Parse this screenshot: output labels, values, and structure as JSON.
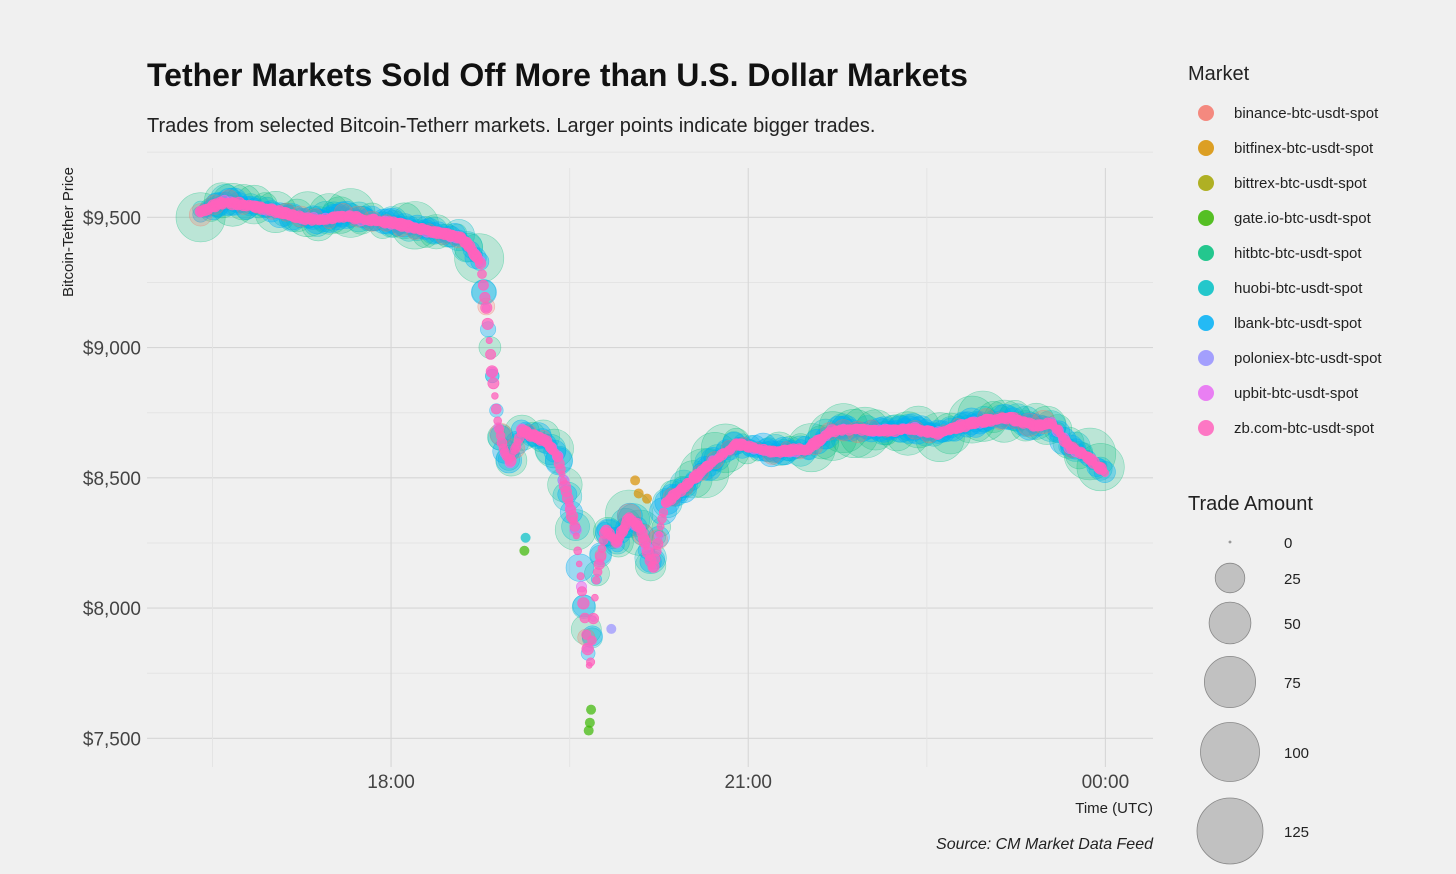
{
  "chart_data": {
    "type": "scatter",
    "title": "Tether Markets Sold Off More than U.S. Dollar Markets",
    "subtitle": "Trades from selected Bitcoin-Tetherr markets. Larger points indicate bigger trades.",
    "xlabel": "Time (UTC)",
    "ylabel": "Bitcoin-Tether Price",
    "caption": "Source: CM Market Data Feed",
    "x_ticks": [
      {
        "label": "18:00",
        "hours": 18
      },
      {
        "label": "21:00",
        "hours": 21
      },
      {
        "label": "00:00",
        "hours": 24
      }
    ],
    "y_ticks": [
      {
        "label": "$7,500",
        "value": 7500
      },
      {
        "label": "$8,000",
        "value": 8000
      },
      {
        "label": "$8,500",
        "value": 8500
      },
      {
        "label": "$9,000",
        "value": 9000
      },
      {
        "label": "$9,500",
        "value": 9500
      }
    ],
    "xlim_hours": [
      15.95,
      24.4
    ],
    "ylim": [
      7390,
      9720
    ],
    "grid": true,
    "legend_position": "right",
    "price_path": [
      [
        16.4,
        9520
      ],
      [
        16.6,
        9560
      ],
      [
        16.8,
        9545
      ],
      [
        17.0,
        9530
      ],
      [
        17.2,
        9500
      ],
      [
        17.4,
        9490
      ],
      [
        17.6,
        9505
      ],
      [
        17.8,
        9490
      ],
      [
        18.0,
        9480
      ],
      [
        18.2,
        9460
      ],
      [
        18.4,
        9440
      ],
      [
        18.6,
        9420
      ],
      [
        18.75,
        9330
      ],
      [
        18.8,
        9150
      ],
      [
        18.85,
        8900
      ],
      [
        18.9,
        8700
      ],
      [
        18.95,
        8600
      ],
      [
        19.0,
        8560
      ],
      [
        19.1,
        8680
      ],
      [
        19.2,
        8660
      ],
      [
        19.3,
        8640
      ],
      [
        19.4,
        8580
      ],
      [
        19.55,
        8300
      ],
      [
        19.62,
        8000
      ],
      [
        19.67,
        7750
      ],
      [
        19.72,
        8100
      ],
      [
        19.8,
        8300
      ],
      [
        19.9,
        8250
      ],
      [
        20.0,
        8350
      ],
      [
        20.1,
        8300
      ],
      [
        20.2,
        8150
      ],
      [
        20.3,
        8400
      ],
      [
        20.5,
        8480
      ],
      [
        20.7,
        8560
      ],
      [
        20.9,
        8630
      ],
      [
        21.2,
        8600
      ],
      [
        21.5,
        8610
      ],
      [
        21.7,
        8680
      ],
      [
        21.9,
        8690
      ],
      [
        22.1,
        8680
      ],
      [
        22.4,
        8690
      ],
      [
        22.6,
        8670
      ],
      [
        22.8,
        8700
      ],
      [
        23.0,
        8720
      ],
      [
        23.2,
        8730
      ],
      [
        23.4,
        8700
      ],
      [
        23.55,
        8710
      ],
      [
        23.7,
        8620
      ],
      [
        23.85,
        8580
      ],
      [
        24.0,
        8520
      ]
    ],
    "spikes": [
      {
        "x": 19.12,
        "y": 8220,
        "series": "gate.io-btc-usdt-spot"
      },
      {
        "x": 19.13,
        "y": 8270,
        "series": "huobi-btc-usdt-spot"
      },
      {
        "x": 19.66,
        "y": 7530,
        "series": "gate.io-btc-usdt-spot"
      },
      {
        "x": 19.67,
        "y": 7560,
        "series": "gate.io-btc-usdt-spot"
      },
      {
        "x": 19.68,
        "y": 7610,
        "series": "gate.io-btc-usdt-spot"
      },
      {
        "x": 20.05,
        "y": 8490,
        "series": "bitfinex-btc-usdt-spot"
      },
      {
        "x": 20.08,
        "y": 8440,
        "series": "bitfinex-btc-usdt-spot"
      },
      {
        "x": 20.15,
        "y": 8420,
        "series": "bitfinex-btc-usdt-spot"
      },
      {
        "x": 19.85,
        "y": 7920,
        "series": "poloniex-btc-usdt-spot"
      }
    ],
    "series": [
      {
        "name": "binance-btc-usdt-spot",
        "color": "#f4776b"
      },
      {
        "name": "bitfinex-btc-usdt-spot",
        "color": "#d89000"
      },
      {
        "name": "bittrex-btc-usdt-spot",
        "color": "#a3a500"
      },
      {
        "name": "gate.io-btc-usdt-spot",
        "color": "#39b600"
      },
      {
        "name": "hitbtc-btc-usdt-spot",
        "color": "#00bf7d"
      },
      {
        "name": "huobi-btc-usdt-spot",
        "color": "#00bfc4"
      },
      {
        "name": "lbank-btc-usdt-spot",
        "color": "#00b0f6"
      },
      {
        "name": "poloniex-btc-usdt-spot",
        "color": "#9590ff"
      },
      {
        "name": "upbit-btc-usdt-spot",
        "color": "#e76bf3"
      },
      {
        "name": "zb.com-btc-usdt-spot",
        "color": "#ff62bc"
      }
    ],
    "legend_color_title": "Market",
    "legend_size_title": "Trade Amount",
    "size_legend": [
      {
        "label": "0",
        "value": 0
      },
      {
        "label": "25",
        "value": 25
      },
      {
        "label": "50",
        "value": 50
      },
      {
        "label": "75",
        "value": 75
      },
      {
        "label": "100",
        "value": 100
      },
      {
        "label": "125",
        "value": 125
      }
    ]
  }
}
